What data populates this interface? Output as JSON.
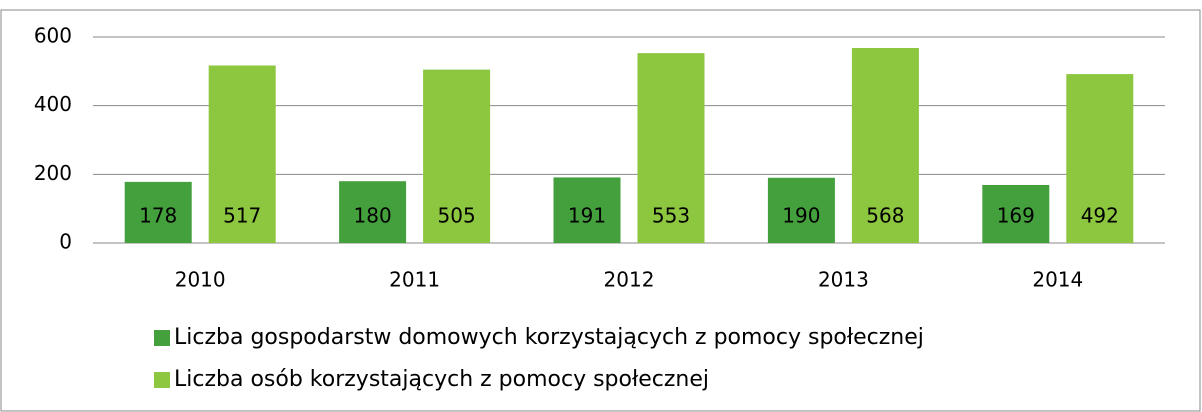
{
  "chart_data": {
    "type": "bar",
    "categories": [
      "2010",
      "2011",
      "2012",
      "2013",
      "2014"
    ],
    "series": [
      {
        "name": "Liczba gospodarstw domowych korzystających z pomocy społecznej",
        "color": "#43a03c",
        "values": [
          178,
          180,
          191,
          190,
          169
        ]
      },
      {
        "name": "Liczba osób korzystających z pomocy społecznej",
        "color": "#8dc63f",
        "values": [
          517,
          505,
          553,
          568,
          492
        ]
      }
    ],
    "ylim": [
      0,
      600
    ],
    "yticks": [
      0,
      200,
      400,
      600
    ],
    "grid": true,
    "legend": "bottom"
  }
}
